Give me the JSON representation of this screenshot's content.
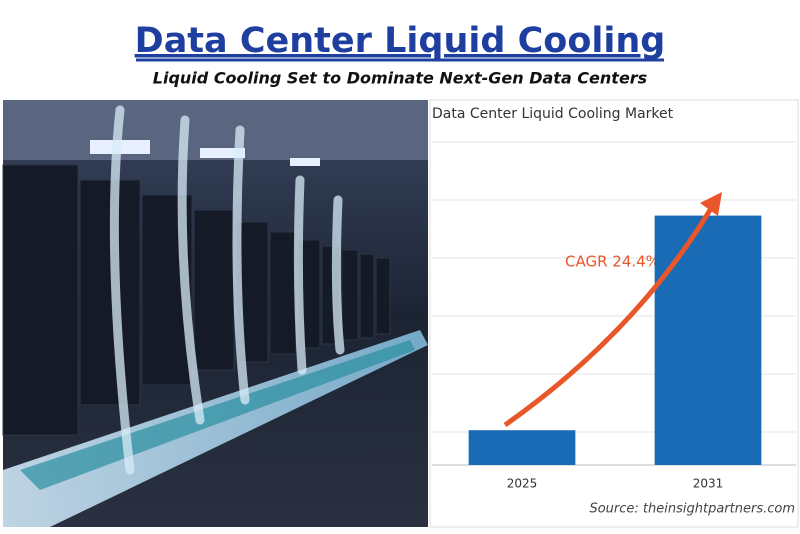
{
  "header": {
    "title": "Data Center Liquid Cooling",
    "subtitle": "Liquid Cooling Set to Dominate Next-Gen Data Centers"
  },
  "chart_data": {
    "type": "bar",
    "title": "Data Center Liquid Cooling Market",
    "categories": [
      "2025",
      "2031"
    ],
    "values": [
      0.6,
      4.3
    ],
    "color": "#1a6bb5",
    "ylim": [
      0,
      6
    ],
    "annotation": "CAGR 24.4%",
    "source": "Source: theinsightpartners.com"
  }
}
